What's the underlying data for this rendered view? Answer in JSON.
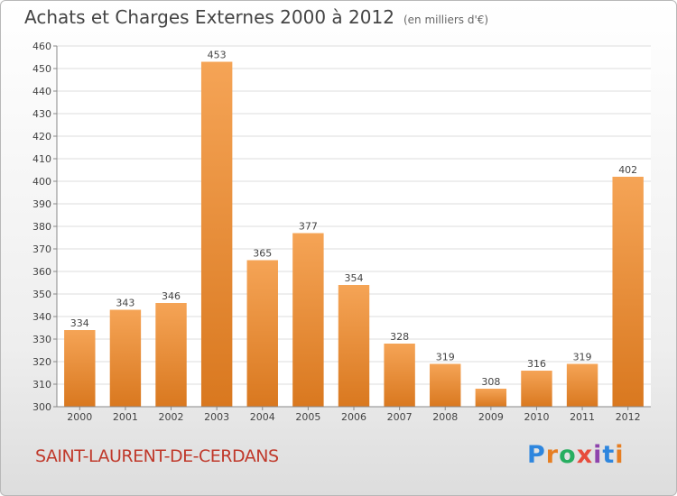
{
  "header": {
    "title": "Achats et Charges Externes 2000 à 2012",
    "unit": "(en milliers d'€)"
  },
  "commune": "SAINT-LAURENT-DE-CERDANS",
  "brand": {
    "text": "Proxiti",
    "colors": [
      "#2e86de",
      "#e67e22",
      "#27ae60",
      "#e74c3c",
      "#8e44ad"
    ]
  },
  "colors": {
    "bar_light": "#f5a456",
    "bar_dark": "#d9781f",
    "title": "#444444",
    "commune": "#c0392b",
    "grid": "#dddddd"
  },
  "chart_data": {
    "type": "bar",
    "title": "Achats et Charges Externes 2000 à 2012",
    "subtitle": "(en milliers d'€)",
    "categories": [
      "2000",
      "2001",
      "2002",
      "2003",
      "2004",
      "2005",
      "2006",
      "2007",
      "2008",
      "2009",
      "2010",
      "2011",
      "2012"
    ],
    "values": [
      334,
      343,
      346,
      453,
      365,
      377,
      354,
      328,
      319,
      308,
      316,
      319,
      402
    ],
    "ylim": [
      300,
      460
    ],
    "yticks": [
      300,
      310,
      320,
      330,
      340,
      350,
      360,
      370,
      380,
      390,
      400,
      410,
      420,
      430,
      440,
      450,
      460
    ],
    "grid": true,
    "data_labels": true
  }
}
